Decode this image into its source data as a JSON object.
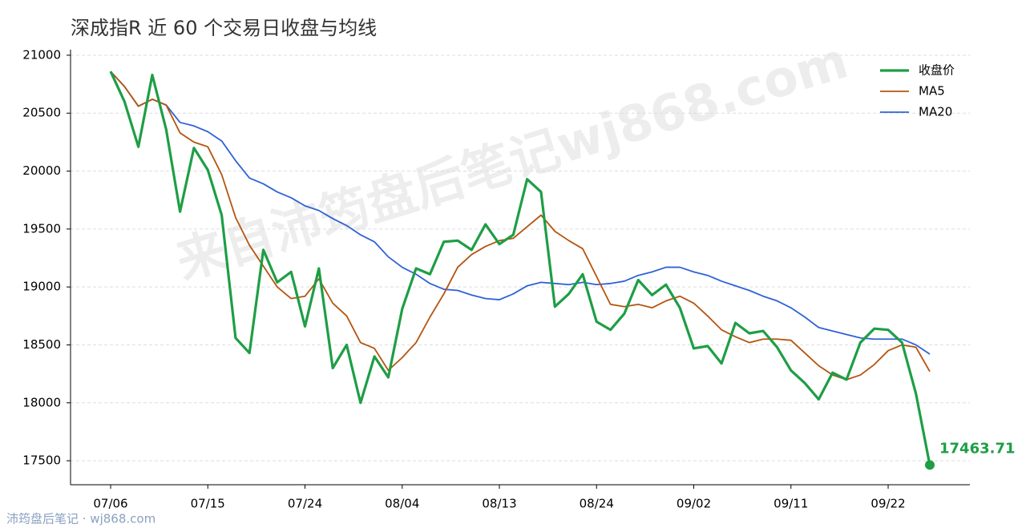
{
  "chart_data": {
    "type": "line",
    "title": "深成指R 近 60 个交易日收盘与均线",
    "watermark": "来自沛筠盘后笔记wj868.com",
    "source": "沛筠盘后笔记 · wj868.com",
    "categories": [
      "07/06",
      null,
      null,
      null,
      null,
      null,
      null,
      "07/15",
      null,
      null,
      null,
      null,
      null,
      null,
      "07/24",
      null,
      null,
      null,
      null,
      null,
      null,
      "08/04",
      null,
      null,
      null,
      null,
      null,
      null,
      "08/13",
      null,
      null,
      null,
      null,
      null,
      null,
      "08/24",
      null,
      null,
      null,
      null,
      null,
      null,
      "09/02",
      null,
      null,
      null,
      null,
      null,
      null,
      "09/11",
      null,
      null,
      null,
      null,
      null,
      null,
      "09/22",
      null,
      null,
      null
    ],
    "series": [
      {
        "name": "收盘价",
        "color": "#1e9e45",
        "values": [
          20860,
          20600,
          20210,
          20830,
          20360,
          19650,
          20200,
          20010,
          19620,
          18560,
          18430,
          19320,
          19040,
          19130,
          18660,
          19160,
          18300,
          18500,
          18000,
          18400,
          18220,
          18810,
          19160,
          19110,
          19390,
          19400,
          19320,
          19540,
          19370,
          19450,
          19930,
          19820,
          18830,
          18940,
          19110,
          18700,
          18630,
          18770,
          19060,
          18930,
          19020,
          18820,
          18470,
          18490,
          18340,
          18690,
          18600,
          18620,
          18480,
          18280,
          18170,
          18030,
          18260,
          18200,
          18520,
          18640,
          18630,
          18520,
          18080,
          17463.71
        ]
      },
      {
        "name": "MA5",
        "color": "#b5540f",
        "values": [
          20860,
          20730,
          20560,
          20620,
          20570,
          20330,
          20250,
          20210,
          19970,
          19600,
          19360,
          19180,
          19000,
          18900,
          18920,
          19070,
          18860,
          18750,
          18520,
          18470,
          18280,
          18390,
          18520,
          18740,
          18940,
          19170,
          19280,
          19350,
          19400,
          19420,
          19520,
          19620,
          19480,
          19400,
          19330,
          19090,
          18850,
          18830,
          18850,
          18820,
          18880,
          18920,
          18860,
          18750,
          18630,
          18570,
          18520,
          18550,
          18550,
          18540,
          18430,
          18320,
          18240,
          18200,
          18240,
          18330,
          18450,
          18500,
          18480,
          18270
        ]
      },
      {
        "name": "MA20",
        "color": "#2f62d6",
        "values": [
          20860,
          20730,
          20560,
          20620,
          20570,
          20420,
          20390,
          20340,
          20260,
          20090,
          19940,
          19890,
          19820,
          19770,
          19700,
          19660,
          19590,
          19530,
          19450,
          19390,
          19260,
          19170,
          19110,
          19030,
          18980,
          18970,
          18930,
          18900,
          18890,
          18940,
          19010,
          19040,
          19030,
          19020,
          19040,
          19020,
          19030,
          19050,
          19100,
          19130,
          19170,
          19170,
          19130,
          19100,
          19050,
          19010,
          18970,
          18920,
          18880,
          18820,
          18740,
          18650,
          18620,
          18590,
          18560,
          18550,
          18550,
          18550,
          18500,
          18420
        ]
      }
    ],
    "ylim": [
      17293,
      21048
    ],
    "yticks": [
      17500,
      18000,
      18500,
      19000,
      19500,
      20000,
      20500,
      21000
    ],
    "grid": true,
    "legend": "upper right"
  }
}
